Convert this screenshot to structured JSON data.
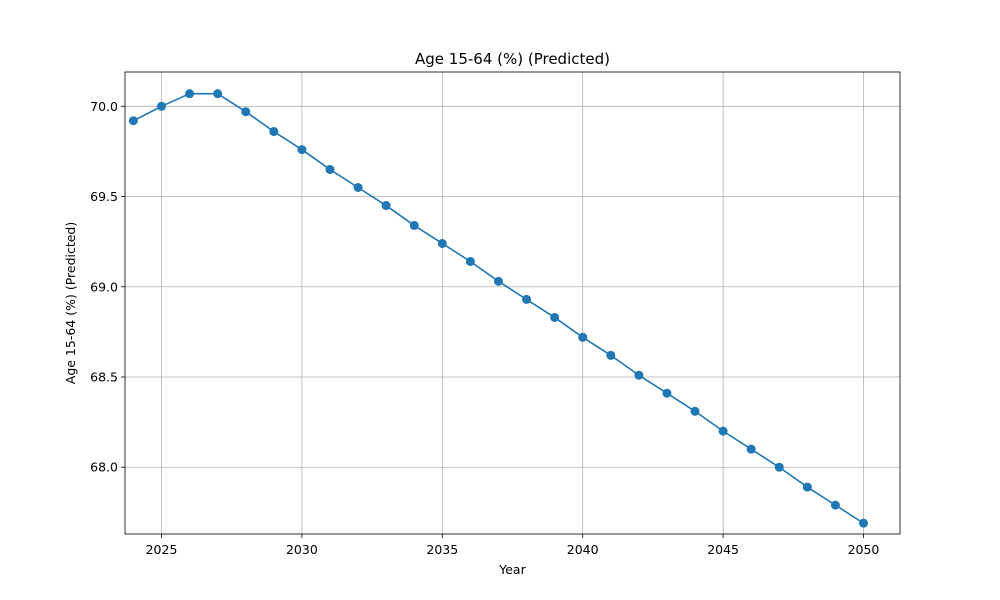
{
  "chart_data": {
    "type": "line",
    "title": "Age 15-64 (%) (Predicted)",
    "xlabel": "Year",
    "ylabel": "Age 15-64 (%) (Predicted)",
    "x": [
      2024,
      2025,
      2026,
      2027,
      2028,
      2029,
      2030,
      2031,
      2032,
      2033,
      2034,
      2035,
      2036,
      2037,
      2038,
      2039,
      2040,
      2041,
      2042,
      2043,
      2044,
      2045,
      2046,
      2047,
      2048,
      2049,
      2050
    ],
    "series": [
      {
        "values": [
          69.92,
          70.0,
          70.07,
          70.07,
          69.97,
          69.86,
          69.76,
          69.65,
          69.55,
          69.45,
          69.34,
          69.24,
          69.14,
          69.03,
          68.93,
          68.83,
          68.72,
          68.62,
          68.51,
          68.41,
          68.31,
          68.2,
          68.1,
          68.0,
          67.89,
          67.79,
          67.69
        ],
        "color": "#1f77b4",
        "marker": "circle"
      }
    ],
    "xlim": [
      2023.7,
      2051.3
    ],
    "ylim": [
      67.63,
      70.19
    ],
    "xticks": [
      2025,
      2030,
      2035,
      2040,
      2045,
      2050
    ],
    "xtick_labels": [
      "2025",
      "2030",
      "2035",
      "2040",
      "2045",
      "2050"
    ],
    "yticks": [
      68.0,
      68.5,
      69.0,
      69.5,
      70.0
    ],
    "ytick_labels": [
      "68.0",
      "68.5",
      "69.0",
      "69.5",
      "70.0"
    ],
    "grid": true,
    "legend": "none"
  }
}
